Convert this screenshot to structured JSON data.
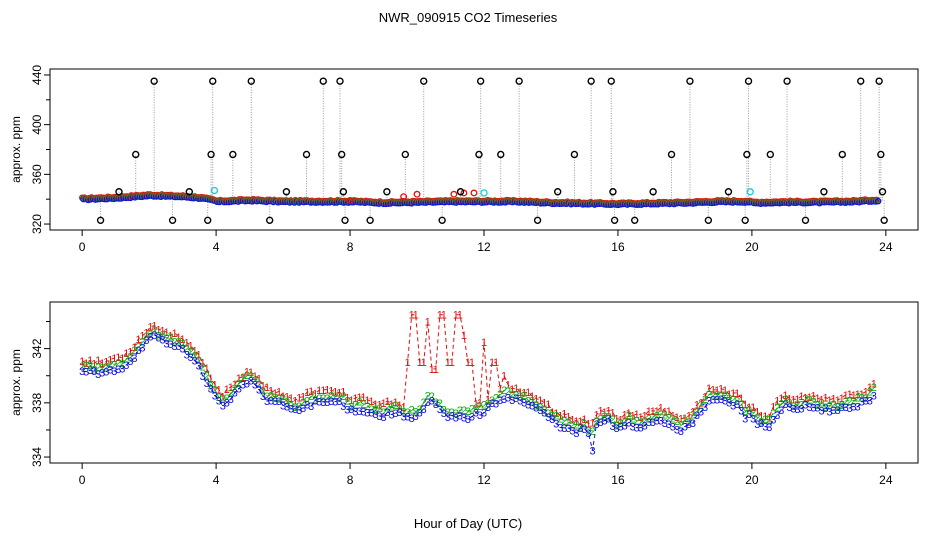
{
  "title": "NWR_090915  CO2 Timeseries",
  "xlabel": "Hour of Day (UTC)",
  "colors": {
    "series1": "#e01010",
    "series2": "#10b010",
    "series3": "#1010e0",
    "cyan": "#20d0e0",
    "outlier": "#000000",
    "drop": "#9a9a9a"
  },
  "chart_data": [
    {
      "type": "scatter",
      "panel": "top",
      "ylabel": "approx. ppm",
      "xlim": [
        0,
        24
      ],
      "ylim": [
        320,
        440
      ],
      "xticks": [
        0,
        4,
        8,
        12,
        16,
        20,
        24
      ],
      "yticks": [
        320,
        360,
        400,
        440
      ],
      "series_names": [
        "1",
        "2",
        "3"
      ],
      "baseline": [
        [
          0,
          340
        ],
        [
          0.5,
          340.5
        ],
        [
          1,
          341
        ],
        [
          1.5,
          342
        ],
        [
          2,
          343
        ],
        [
          2.5,
          342.5
        ],
        [
          3,
          342
        ],
        [
          3.5,
          341
        ],
        [
          3.9,
          339
        ],
        [
          4,
          338
        ],
        [
          5,
          339
        ],
        [
          6,
          338
        ],
        [
          7,
          338
        ],
        [
          8,
          338
        ],
        [
          8.5,
          337.5
        ],
        [
          9,
          337
        ],
        [
          10,
          337.5
        ],
        [
          11,
          338
        ],
        [
          12,
          338
        ],
        [
          13,
          338
        ],
        [
          14,
          337
        ],
        [
          15,
          336.5
        ],
        [
          16,
          336
        ],
        [
          17,
          336.5
        ],
        [
          18,
          337
        ],
        [
          19,
          338
        ],
        [
          19.9,
          338
        ],
        [
          20,
          337
        ],
        [
          21,
          337.5
        ],
        [
          22,
          337.5
        ],
        [
          23,
          338
        ],
        [
          23.7,
          339
        ]
      ],
      "red_bumps": [
        [
          8,
          339
        ],
        [
          9.6,
          342
        ],
        [
          10,
          344
        ],
        [
          11.1,
          344
        ],
        [
          11.4,
          345
        ],
        [
          11.7,
          345
        ]
      ],
      "cyan_points": [
        [
          3.95,
          347
        ],
        [
          12,
          345
        ],
        [
          19.95,
          346
        ]
      ],
      "outliers": [
        {
          "x": 0.55,
          "y": 323
        },
        {
          "x": 1.1,
          "y": 346
        },
        {
          "x": 1.6,
          "y": 376
        },
        {
          "x": 2.15,
          "y": 435
        },
        {
          "x": 2.7,
          "y": 323
        },
        {
          "x": 3.2,
          "y": 346
        },
        {
          "x": 3.75,
          "y": 323
        },
        {
          "x": 3.85,
          "y": 376
        },
        {
          "x": 3.9,
          "y": 435
        },
        {
          "x": 4.5,
          "y": 376
        },
        {
          "x": 5.05,
          "y": 435
        },
        {
          "x": 5.6,
          "y": 323
        },
        {
          "x": 6.1,
          "y": 346
        },
        {
          "x": 6.7,
          "y": 376
        },
        {
          "x": 7.2,
          "y": 435
        },
        {
          "x": 7.7,
          "y": 435
        },
        {
          "x": 7.75,
          "y": 376
        },
        {
          "x": 7.8,
          "y": 346
        },
        {
          "x": 7.85,
          "y": 323
        },
        {
          "x": 8.6,
          "y": 323
        },
        {
          "x": 9.1,
          "y": 346
        },
        {
          "x": 9.65,
          "y": 376
        },
        {
          "x": 10.2,
          "y": 435
        },
        {
          "x": 10.75,
          "y": 323
        },
        {
          "x": 11.3,
          "y": 346
        },
        {
          "x": 11.85,
          "y": 376
        },
        {
          "x": 11.9,
          "y": 435
        },
        {
          "x": 12.5,
          "y": 376
        },
        {
          "x": 13.05,
          "y": 435
        },
        {
          "x": 13.6,
          "y": 323
        },
        {
          "x": 14.2,
          "y": 346
        },
        {
          "x": 14.7,
          "y": 376
        },
        {
          "x": 15.2,
          "y": 435
        },
        {
          "x": 15.8,
          "y": 435
        },
        {
          "x": 15.85,
          "y": 346
        },
        {
          "x": 15.9,
          "y": 323
        },
        {
          "x": 16.5,
          "y": 323
        },
        {
          "x": 17.05,
          "y": 346
        },
        {
          "x": 17.6,
          "y": 376
        },
        {
          "x": 18.15,
          "y": 435
        },
        {
          "x": 18.7,
          "y": 323
        },
        {
          "x": 19.3,
          "y": 346
        },
        {
          "x": 19.8,
          "y": 323
        },
        {
          "x": 19.85,
          "y": 376
        },
        {
          "x": 19.9,
          "y": 435
        },
        {
          "x": 20.55,
          "y": 376
        },
        {
          "x": 21.05,
          "y": 435
        },
        {
          "x": 21.6,
          "y": 323
        },
        {
          "x": 22.15,
          "y": 346
        },
        {
          "x": 22.7,
          "y": 376
        },
        {
          "x": 23.25,
          "y": 435
        },
        {
          "x": 23.8,
          "y": 435
        },
        {
          "x": 23.85,
          "y": 376
        },
        {
          "x": 23.9,
          "y": 346
        },
        {
          "x": 23.95,
          "y": 323
        }
      ]
    },
    {
      "type": "scatter",
      "panel": "bottom",
      "ylabel": "approx. ppm",
      "xlim": [
        0,
        24
      ],
      "ylim": [
        334,
        345
      ],
      "xticks": [
        0,
        4,
        8,
        12,
        16,
        20,
        24
      ],
      "yticks": [
        334,
        338,
        342
      ],
      "series_names": [
        "1",
        "2",
        "3"
      ],
      "baseline": [
        [
          0,
          340.6
        ],
        [
          0.3,
          340.5
        ],
        [
          0.6,
          340.4
        ],
        [
          0.9,
          340.7
        ],
        [
          1.2,
          340.9
        ],
        [
          1.5,
          341.5
        ],
        [
          1.8,
          342.5
        ],
        [
          2.1,
          343.2
        ],
        [
          2.4,
          342.8
        ],
        [
          2.7,
          342.5
        ],
        [
          3,
          342.3
        ],
        [
          3.3,
          341.5
        ],
        [
          3.6,
          340.4
        ],
        [
          3.8,
          339.5
        ],
        [
          4,
          338.5
        ],
        [
          4.2,
          338.1
        ],
        [
          4.5,
          338.8
        ],
        [
          4.8,
          339.5
        ],
        [
          5.0,
          340.0
        ],
        [
          5.2,
          339.3
        ],
        [
          5.5,
          338.5
        ],
        [
          5.8,
          338.3
        ],
        [
          6.1,
          338.0
        ],
        [
          6.4,
          337.6
        ],
        [
          6.7,
          338.1
        ],
        [
          7,
          338.3
        ],
        [
          7.3,
          338.3
        ],
        [
          7.6,
          338.4
        ],
        [
          7.8,
          338.2
        ],
        [
          8,
          337.7
        ],
        [
          8.3,
          337.8
        ],
        [
          8.6,
          337.5
        ],
        [
          9,
          337.3
        ],
        [
          9.3,
          337.6
        ],
        [
          9.6,
          337.3
        ],
        [
          10,
          337.3
        ],
        [
          10.2,
          337.8
        ],
        [
          10.4,
          338.5
        ],
        [
          10.6,
          337.9
        ],
        [
          10.9,
          337.2
        ],
        [
          11.2,
          337.2
        ],
        [
          11.5,
          337.2
        ],
        [
          11.8,
          337.4
        ],
        [
          12,
          337.6
        ],
        [
          12.3,
          338.2
        ],
        [
          12.6,
          338.7
        ],
        [
          12.9,
          338.6
        ],
        [
          13.2,
          338.3
        ],
        [
          13.5,
          337.9
        ],
        [
          13.8,
          337.5
        ],
        [
          14.1,
          336.8
        ],
        [
          14.4,
          336.5
        ],
        [
          14.7,
          336.0
        ],
        [
          15.0,
          336.4
        ],
        [
          15.2,
          335.7
        ],
        [
          15.4,
          336.8
        ],
        [
          15.7,
          337.0
        ],
        [
          16,
          336.2
        ],
        [
          16.3,
          336.8
        ],
        [
          16.6,
          336.4
        ],
        [
          16.9,
          336.8
        ],
        [
          17.2,
          337.0
        ],
        [
          17.5,
          336.8
        ],
        [
          17.8,
          336.3
        ],
        [
          18.1,
          336.5
        ],
        [
          18.4,
          337.3
        ],
        [
          18.7,
          338.4
        ],
        [
          19,
          338.5
        ],
        [
          19.3,
          338.3
        ],
        [
          19.6,
          338.0
        ],
        [
          19.8,
          337.2
        ],
        [
          20,
          337.4
        ],
        [
          20.2,
          336.7
        ],
        [
          20.5,
          336.4
        ],
        [
          20.7,
          337.3
        ],
        [
          21,
          338.0
        ],
        [
          21.3,
          337.6
        ],
        [
          21.6,
          338.0
        ],
        [
          21.9,
          337.8
        ],
        [
          22.2,
          337.7
        ],
        [
          22.5,
          337.6
        ],
        [
          22.8,
          338.0
        ],
        [
          23.1,
          338.0
        ],
        [
          23.4,
          338.3
        ],
        [
          23.7,
          339.0
        ]
      ],
      "red_bumps": [
        [
          9.7,
          341
        ],
        [
          9.9,
          344.5
        ],
        [
          10.1,
          341
        ],
        [
          10.3,
          344
        ],
        [
          10.5,
          340.5
        ],
        [
          10.7,
          344.5
        ],
        [
          11.0,
          341
        ],
        [
          11.2,
          344.5
        ],
        [
          11.4,
          343
        ],
        [
          11.6,
          341
        ],
        [
          12.0,
          342.5
        ],
        [
          12.3,
          341
        ],
        [
          12.6,
          340
        ]
      ],
      "low_spike": [
        [
          15.2,
          334.5
        ]
      ]
    }
  ]
}
